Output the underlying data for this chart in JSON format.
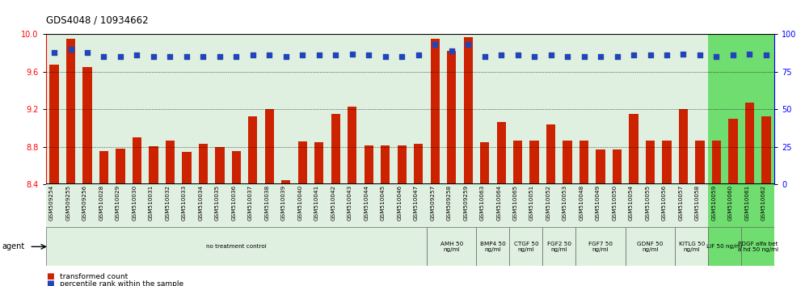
{
  "title": "GDS4048 / 10934662",
  "categories": [
    "GSM509254",
    "GSM509255",
    "GSM509256",
    "GSM510028",
    "GSM510029",
    "GSM510030",
    "GSM510031",
    "GSM510032",
    "GSM510033",
    "GSM510034",
    "GSM510035",
    "GSM510036",
    "GSM510037",
    "GSM510038",
    "GSM510039",
    "GSM510040",
    "GSM510041",
    "GSM510042",
    "GSM510043",
    "GSM510044",
    "GSM510045",
    "GSM510046",
    "GSM510047",
    "GSM509257",
    "GSM509258",
    "GSM509259",
    "GSM510063",
    "GSM510064",
    "GSM510065",
    "GSM510051",
    "GSM510052",
    "GSM510053",
    "GSM510048",
    "GSM510049",
    "GSM510050",
    "GSM510054",
    "GSM510055",
    "GSM510056",
    "GSM510057",
    "GSM510058",
    "GSM510059",
    "GSM510060",
    "GSM510061",
    "GSM510062"
  ],
  "bar_values": [
    9.68,
    9.95,
    9.65,
    8.76,
    8.78,
    8.9,
    8.81,
    8.87,
    8.75,
    8.83,
    8.8,
    8.76,
    9.13,
    9.2,
    8.45,
    8.86,
    8.85,
    9.15,
    9.23,
    8.82,
    8.82,
    8.82,
    8.83,
    9.95,
    9.82,
    9.97,
    8.85,
    9.07,
    8.87,
    8.87,
    9.04,
    8.87,
    8.87,
    8.77,
    8.77,
    9.15,
    8.87,
    8.87,
    9.2,
    8.87,
    8.87,
    9.1,
    9.27,
    9.13
  ],
  "percentile_values": [
    88,
    90,
    88,
    85,
    85,
    86,
    85,
    85,
    85,
    85,
    85,
    85,
    86,
    86,
    85,
    86,
    86,
    86,
    87,
    86,
    85,
    85,
    86,
    93,
    89,
    93,
    85,
    86,
    86,
    85,
    86,
    85,
    85,
    85,
    85,
    86,
    86,
    86,
    87,
    86,
    85,
    86,
    87,
    86
  ],
  "bar_color": "#cc2200",
  "dot_color": "#2244bb",
  "ylim_left": [
    8.4,
    10.0
  ],
  "ylim_right": [
    0,
    100
  ],
  "yticks_left": [
    8.4,
    8.8,
    9.2,
    9.6,
    10.0
  ],
  "yticks_right": [
    0,
    25,
    50,
    75,
    100
  ],
  "grid_values": [
    9.6,
    9.2,
    8.8
  ],
  "agent_groups": [
    {
      "label": "no treatment control",
      "start": 0,
      "end": 23,
      "color": "#e0f0e0"
    },
    {
      "label": "AMH 50\nng/ml",
      "start": 23,
      "end": 26,
      "color": "#e0f0e0"
    },
    {
      "label": "BMP4 50\nng/ml",
      "start": 26,
      "end": 28,
      "color": "#e0f0e0"
    },
    {
      "label": "CTGF 50\nng/ml",
      "start": 28,
      "end": 30,
      "color": "#e0f0e0"
    },
    {
      "label": "FGF2 50\nng/ml",
      "start": 30,
      "end": 32,
      "color": "#e0f0e0"
    },
    {
      "label": "FGF7 50\nng/ml",
      "start": 32,
      "end": 35,
      "color": "#e0f0e0"
    },
    {
      "label": "GDNF 50\nng/ml",
      "start": 35,
      "end": 38,
      "color": "#e0f0e0"
    },
    {
      "label": "KITLG 50\nng/ml",
      "start": 38,
      "end": 40,
      "color": "#e0f0e0"
    },
    {
      "label": "LIF 50 ng/ml",
      "start": 40,
      "end": 42,
      "color": "#70dd70"
    },
    {
      "label": "PDGF alfa bet\na hd 50 ng/ml",
      "start": 42,
      "end": 44,
      "color": "#70dd70"
    }
  ],
  "legend_labels": [
    "transformed count",
    "percentile rank within the sample"
  ],
  "legend_colors": [
    "#cc2200",
    "#2244bb"
  ]
}
